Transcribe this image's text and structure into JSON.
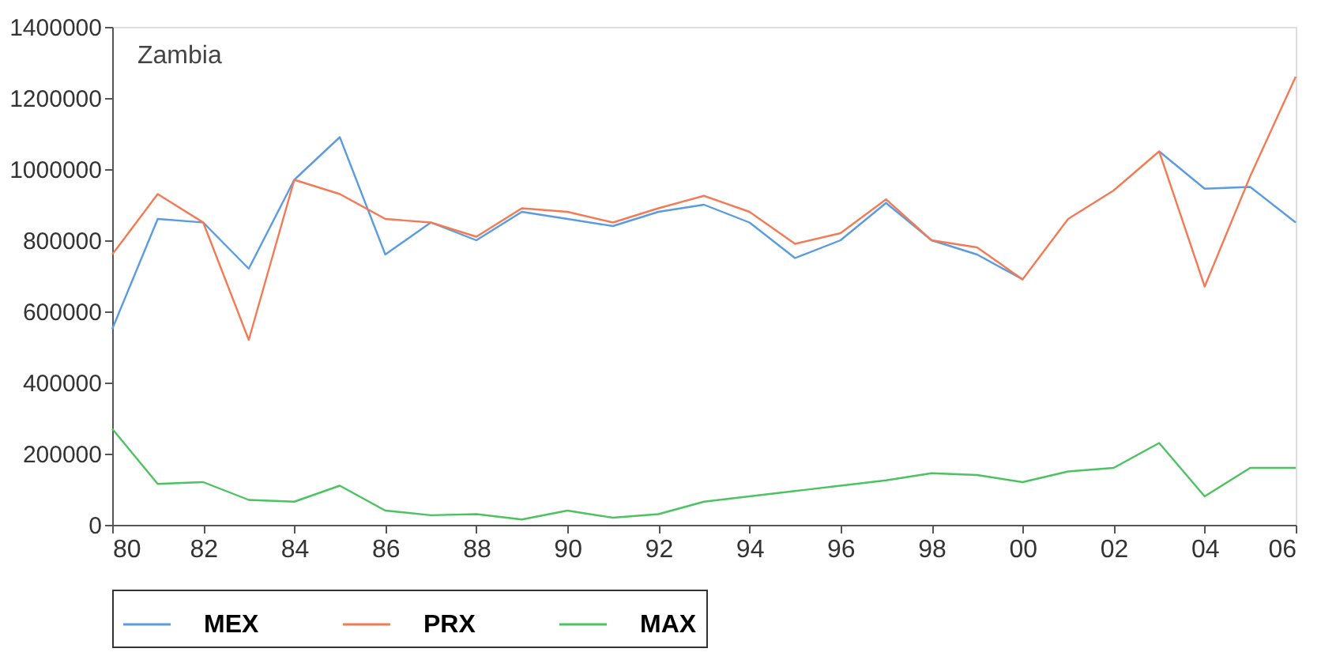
{
  "chart_data": {
    "type": "line",
    "title": "Zambia",
    "x": [
      1980,
      1981,
      1982,
      1983,
      1984,
      1985,
      1986,
      1987,
      1988,
      1989,
      1990,
      1991,
      1992,
      1993,
      1994,
      1995,
      1996,
      1997,
      1998,
      1999,
      2000,
      2001,
      2002,
      2003,
      2004,
      2005,
      2006
    ],
    "series": [
      {
        "name": "MEX",
        "color": "#5b9bdf",
        "values": [
          550000,
          860000,
          850000,
          720000,
          970000,
          1090000,
          760000,
          850000,
          800000,
          880000,
          860000,
          840000,
          880000,
          900000,
          850000,
          750000,
          800000,
          905000,
          800000,
          760000,
          690000,
          null,
          null,
          1050000,
          945000,
          950000,
          850000
        ]
      },
      {
        "name": "PRX",
        "color": "#f47a55",
        "values": [
          760000,
          930000,
          850000,
          520000,
          970000,
          930000,
          860000,
          850000,
          810000,
          890000,
          880000,
          850000,
          890000,
          925000,
          880000,
          790000,
          820000,
          915000,
          800000,
          780000,
          690000,
          860000,
          940000,
          1050000,
          670000,
          980000,
          1260000
        ]
      },
      {
        "name": "MAX",
        "color": "#4cc261",
        "values": [
          270000,
          115000,
          120000,
          70000,
          65000,
          110000,
          40000,
          27000,
          30000,
          15000,
          40000,
          20000,
          30000,
          65000,
          80000,
          95000,
          110000,
          125000,
          145000,
          140000,
          120000,
          150000,
          160000,
          230000,
          80000,
          160000,
          160000
        ]
      }
    ],
    "xlim": [
      1980,
      2006
    ],
    "xticks": [
      {
        "value": 1980,
        "label": "80"
      },
      {
        "value": 1982,
        "label": "82"
      },
      {
        "value": 1984,
        "label": "84"
      },
      {
        "value": 1986,
        "label": "86"
      },
      {
        "value": 1988,
        "label": "88"
      },
      {
        "value": 1990,
        "label": "90"
      },
      {
        "value": 1992,
        "label": "92"
      },
      {
        "value": 1994,
        "label": "94"
      },
      {
        "value": 1996,
        "label": "96"
      },
      {
        "value": 1998,
        "label": "98"
      },
      {
        "value": 2000,
        "label": "00"
      },
      {
        "value": 2002,
        "label": "02"
      },
      {
        "value": 2004,
        "label": "04"
      },
      {
        "value": 2006,
        "label": "06"
      }
    ],
    "ylim": [
      0,
      1400000
    ],
    "yticks": [
      0,
      200000,
      400000,
      600000,
      800000,
      1000000,
      1200000,
      1400000
    ],
    "grid": false,
    "legend": "bottom",
    "marker": "none",
    "line_style": "solid"
  }
}
